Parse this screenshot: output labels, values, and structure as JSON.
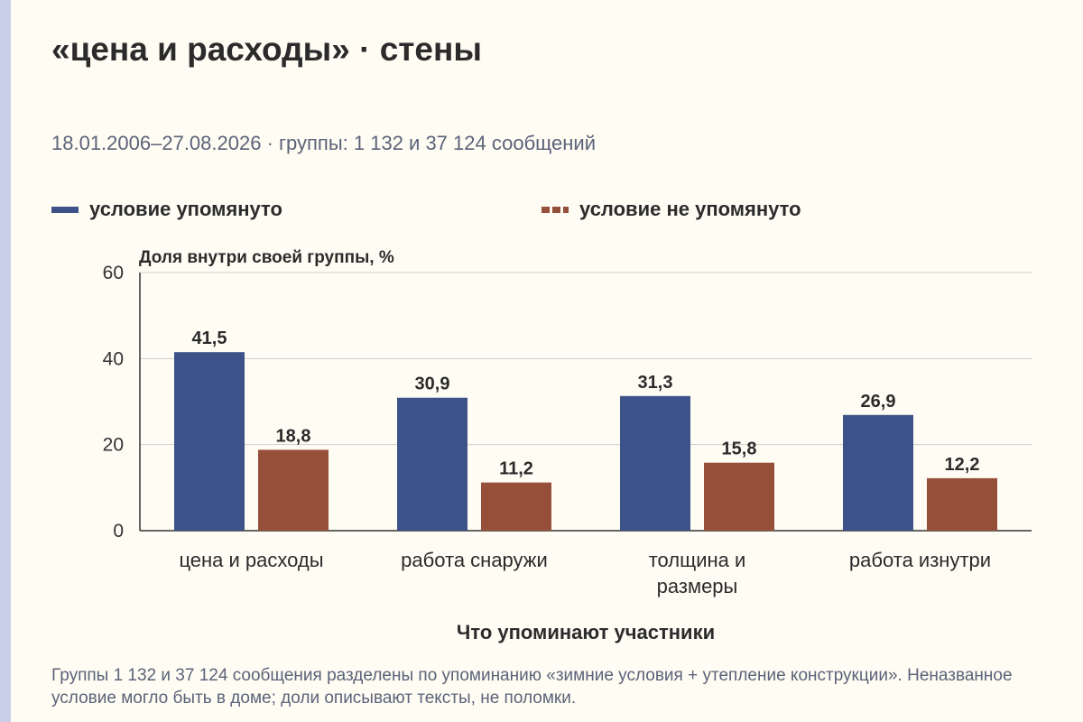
{
  "header": {
    "title": "«цена и расходы» · стены",
    "subtitle": "18.01.2006–27.08.2026 · группы: 1 132 и 37 124 сообщений"
  },
  "legend": [
    {
      "label": "условие упомянуто",
      "color": "#3c5288"
    },
    {
      "label": "условие не упомянуто",
      "color": "#96503a"
    }
  ],
  "chart_data": {
    "type": "bar",
    "ylabel": "Доля внутри своей группы, %",
    "xlabel": "Что упоминают участники",
    "ylim": [
      0,
      60
    ],
    "yticks": [
      0,
      20,
      40,
      60
    ],
    "grid": true,
    "legend_position": "top",
    "categories": [
      [
        "цена и расходы"
      ],
      [
        "работа снаружи"
      ],
      [
        "толщина и",
        "размеры"
      ],
      [
        "работа изнутри"
      ]
    ],
    "series": [
      {
        "name": "условие упомянуто",
        "color": "#3c5288",
        "values": [
          41.5,
          30.9,
          31.3,
          26.9
        ],
        "labels": [
          "41,5",
          "30,9",
          "31,3",
          "26,9"
        ]
      },
      {
        "name": "условие не упомянуто",
        "color": "#96503a",
        "values": [
          18.8,
          11.2,
          15.8,
          12.2
        ],
        "labels": [
          "18,8",
          "11,2",
          "15,8",
          "12,2"
        ]
      }
    ]
  },
  "footnote": "Группы 1 132 и 37 124 сообщения разделены по упоминанию «зимние условия + утепление конструкции». Неназванное условие могло быть в доме; доли описывают тексты, не поломки."
}
